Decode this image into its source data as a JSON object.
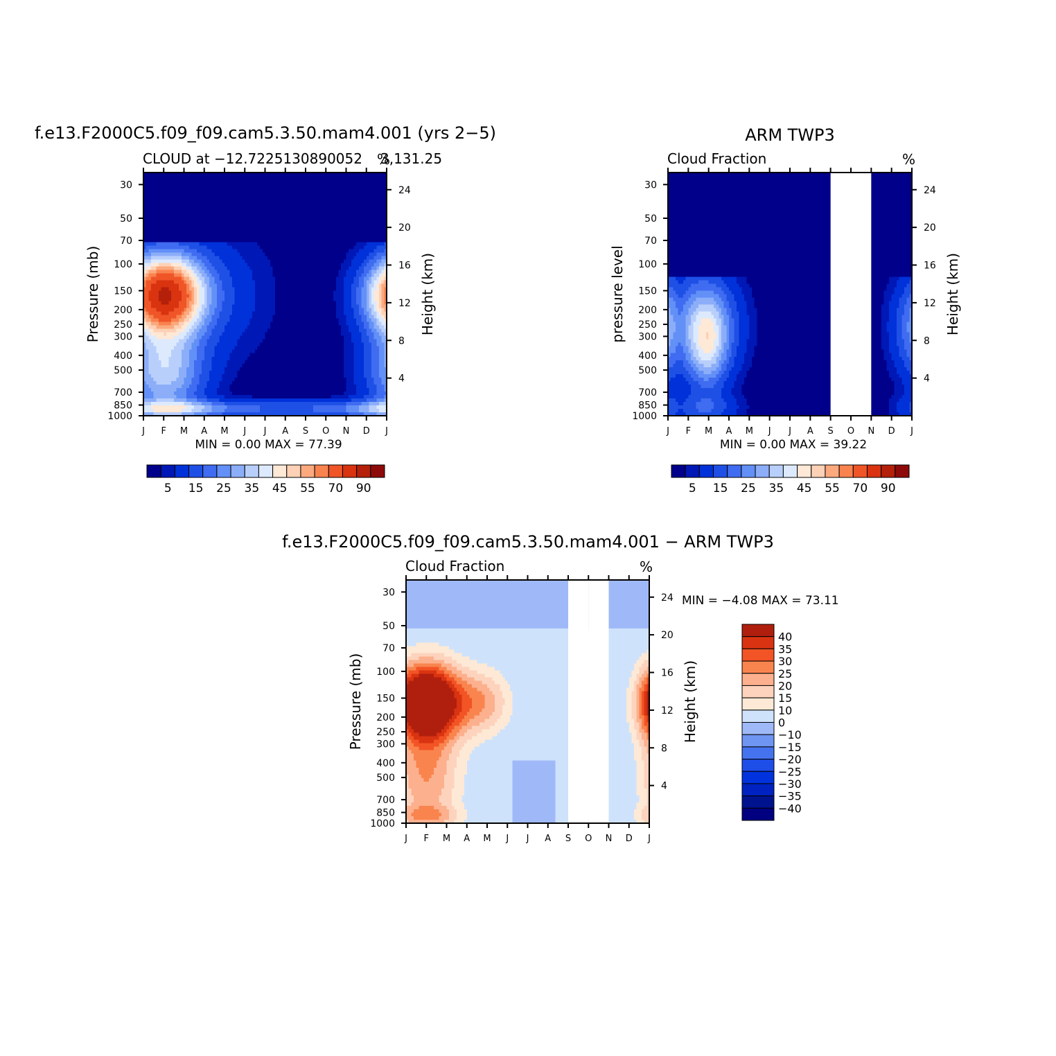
{
  "colors": {
    "abs_scale": [
      "#00008b",
      "#0018b6",
      "#0031d9",
      "#1e50e6",
      "#3f6cf0",
      "#6290f7",
      "#8caef9",
      "#b8cffc",
      "#ddeafe",
      "#fee8d6",
      "#fdd1b6",
      "#fca97e",
      "#f9834f",
      "#ef5527",
      "#d93310",
      "#b4200a",
      "#8e0a0a"
    ],
    "diff_scale": [
      "#000080",
      "#00138f",
      "#0022c0",
      "#0033dd",
      "#1e4ee8",
      "#4572ee",
      "#6f95f2",
      "#9fb9f8",
      "#cfe2fb",
      "#fde9d6",
      "#fdd3bd",
      "#fcb08d",
      "#f9844e",
      "#f25425",
      "#d93311",
      "#b01f0e",
      "#880000"
    ],
    "missing": "#ffffff"
  },
  "chart_data": [
    {
      "type": "heatmap",
      "title": "f.e13.F2000C5.f09_f09.cam5.3.50.mam4.001 (yrs 2−5)",
      "subtitle": "CLOUD at −12.7225130890052",
      "subtitle_right": "3,131.25",
      "units": "%",
      "xlabel": "",
      "ylabel": "Pressure (mb)",
      "ylabel_right": "Height (km)",
      "x_ticks": [
        "J",
        "F",
        "M",
        "A",
        "M",
        "J",
        "J",
        "A",
        "S",
        "O",
        "N",
        "D",
        "J"
      ],
      "y_ticks": [
        30,
        50,
        70,
        100,
        150,
        200,
        250,
        300,
        400,
        500,
        700,
        850,
        1000
      ],
      "y_ticks_right": [
        24,
        20,
        16,
        12,
        8,
        4
      ],
      "ylim": [
        1000,
        25
      ],
      "y_scale": "log",
      "stats": "MIN =    0.00  MAX =   77.39",
      "colorbar_labels": [
        "5",
        "15",
        "25",
        "35",
        "45",
        "55",
        "70",
        "90"
      ],
      "colorbar_levels": [
        2.5,
        5,
        10,
        15,
        20,
        25,
        30,
        35,
        40,
        45,
        50,
        55,
        60,
        70,
        80,
        90
      ],
      "missing_months": [],
      "field": "cam"
    },
    {
      "type": "heatmap",
      "title": "ARM TWP3",
      "subtitle": "Cloud Fraction",
      "subtitle_right": "",
      "units": "%",
      "xlabel": "",
      "ylabel": "pressure level",
      "ylabel_right": "Height (km)",
      "x_ticks": [
        "J",
        "F",
        "M",
        "A",
        "M",
        "J",
        "J",
        "A",
        "S",
        "O",
        "N",
        "D",
        "J"
      ],
      "y_ticks": [
        30,
        50,
        70,
        100,
        150,
        200,
        250,
        300,
        400,
        500,
        700,
        850,
        1000
      ],
      "y_ticks_right": [
        24,
        20,
        16,
        12,
        8,
        4
      ],
      "ylim": [
        1000,
        25
      ],
      "y_scale": "log",
      "stats": "MIN =    0.00  MAX =   39.22",
      "colorbar_labels": [
        "5",
        "15",
        "25",
        "35",
        "45",
        "55",
        "70",
        "90"
      ],
      "colorbar_levels": [
        2.5,
        5,
        10,
        15,
        20,
        25,
        30,
        35,
        40,
        45,
        50,
        55,
        60,
        70,
        80,
        90
      ],
      "missing_months": [
        8,
        9
      ],
      "field": "arm"
    },
    {
      "type": "heatmap",
      "title": "f.e13.F2000C5.f09_f09.cam5.3.50.mam4.001 − ARM TWP3",
      "subtitle": "Cloud Fraction",
      "subtitle_right": "",
      "units": "%",
      "xlabel": "",
      "ylabel": "Pressure (mb)",
      "ylabel_right": "Height (km)",
      "x_ticks": [
        "J",
        "F",
        "M",
        "A",
        "M",
        "J",
        "J",
        "A",
        "S",
        "O",
        "N",
        "D",
        "J"
      ],
      "y_ticks": [
        30,
        50,
        70,
        100,
        150,
        200,
        250,
        300,
        400,
        500,
        700,
        850,
        1000
      ],
      "y_ticks_right": [
        24,
        20,
        16,
        12,
        8,
        4
      ],
      "ylim": [
        1000,
        25
      ],
      "y_scale": "log",
      "stats": "MIN =   −4.08  MAX =   73.11",
      "colorbar_labels": [
        "40",
        "35",
        "30",
        "25",
        "20",
        "15",
        "10",
        "0",
        "−10",
        "−15",
        "−20",
        "−25",
        "−30",
        "−35",
        "−40"
      ],
      "colorbar_levels": [
        -40,
        -35,
        -30,
        -25,
        -20,
        -15,
        -10,
        0,
        10,
        15,
        20,
        25,
        30,
        35,
        40
      ],
      "missing_months": [
        8,
        9
      ],
      "field": "diff"
    }
  ]
}
